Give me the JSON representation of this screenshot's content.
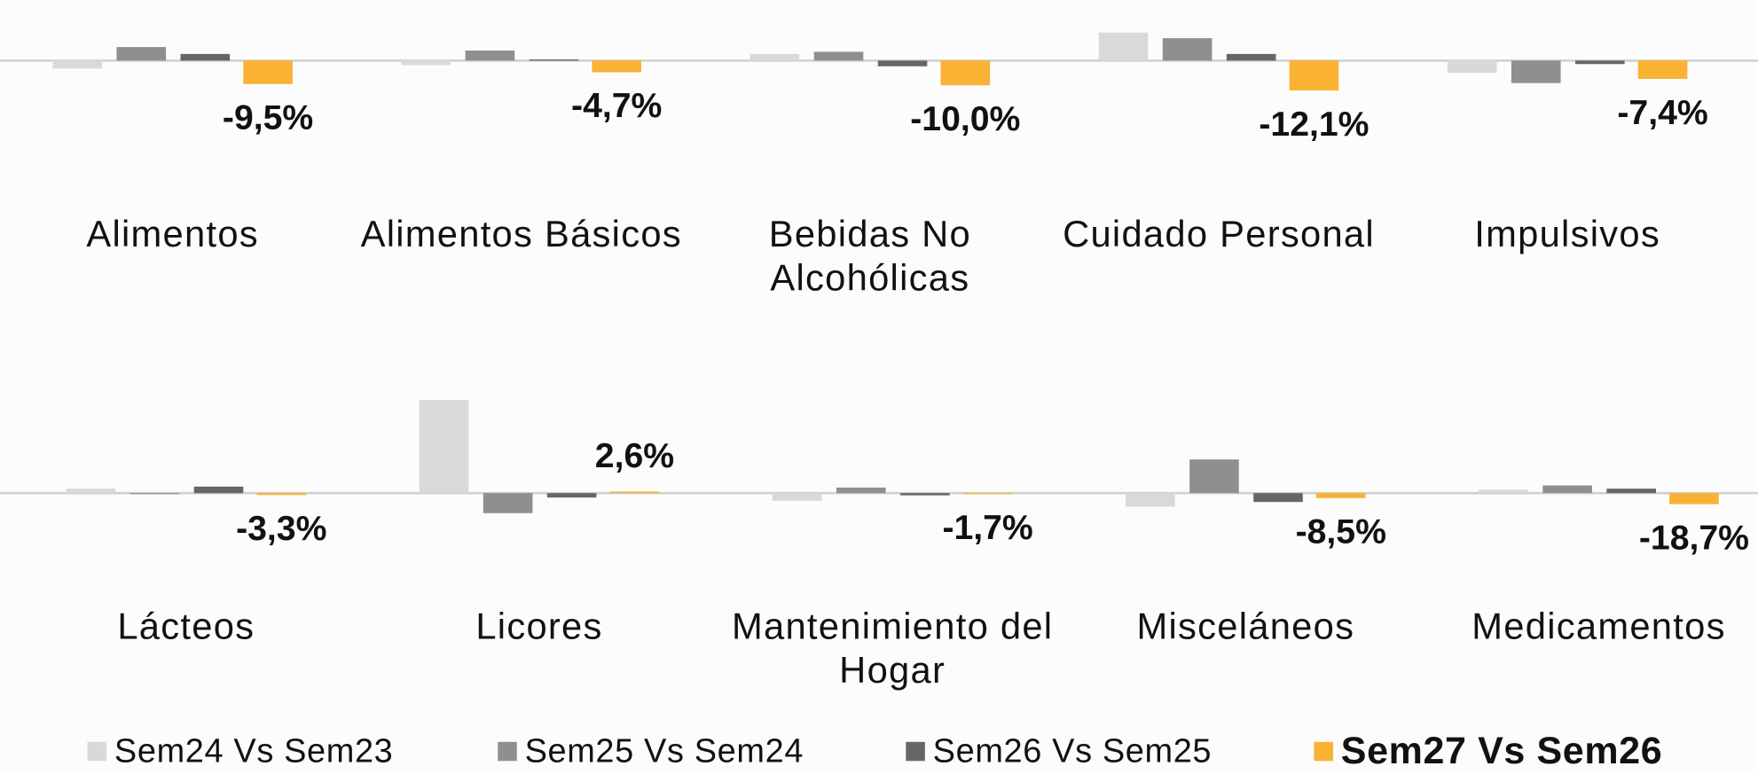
{
  "chart_data": [
    {
      "type": "bar",
      "categories": [
        "Alimentos",
        "Alimentos Básicos",
        "Bebidas No Alcohólicas",
        "Cuidado Personal",
        "Impulsivos"
      ],
      "ylim": [
        -34.5,
        15.5
      ],
      "series": [
        {
          "name": "Sem24 Vs Sem23",
          "color": "#d9d9d9",
          "values": [
            -3.2,
            -1.8,
            2.7,
            11.4,
            -5.0
          ]
        },
        {
          "name": "Sem25 Vs Sem24",
          "color": "#8f8f8f",
          "values": [
            5.5,
            4.1,
            3.6,
            9.1,
            -9.1
          ]
        },
        {
          "name": "Sem26 Vs Sem25",
          "color": "#666666",
          "values": [
            2.7,
            0.5,
            -2.3,
            2.7,
            -1.4
          ]
        },
        {
          "name": "Sem27 Vs Sem26",
          "color": "#f9b233",
          "values": [
            -9.5,
            -4.7,
            -10.0,
            -12.1,
            -7.4
          ],
          "value_labels": [
            "-9,5%",
            "-4,7%",
            "-10,0%",
            "-12,1%",
            "-7,4%"
          ]
        }
      ]
    },
    {
      "type": "bar",
      "categories": [
        "Lácteos",
        "Licores",
        "Mantenimiento del Hogar",
        "Misceláneos",
        "Medicamentos"
      ],
      "ylim": [
        -95,
        190
      ],
      "series": [
        {
          "color": "#d9d9d9",
          "values": [
            7.5,
            158,
            -13,
            -23,
            5.7
          ]
        },
        {
          "color": "#8f8f8f",
          "values": [
            0,
            -34,
            9.4,
            57,
            13
          ]
        },
        {
          "color": "#666666",
          "values": [
            11,
            -7.5,
            -3.8,
            -15,
            7.5
          ]
        },
        {
          "color": "#f9b233",
          "values": [
            -3.3,
            2.6,
            -1.7,
            -8.5,
            -18.7
          ],
          "value_labels": [
            "-3,3%",
            "2,6%",
            "-1,7%",
            "-8,5%",
            "-18,7%"
          ]
        }
      ]
    }
  ]
}
